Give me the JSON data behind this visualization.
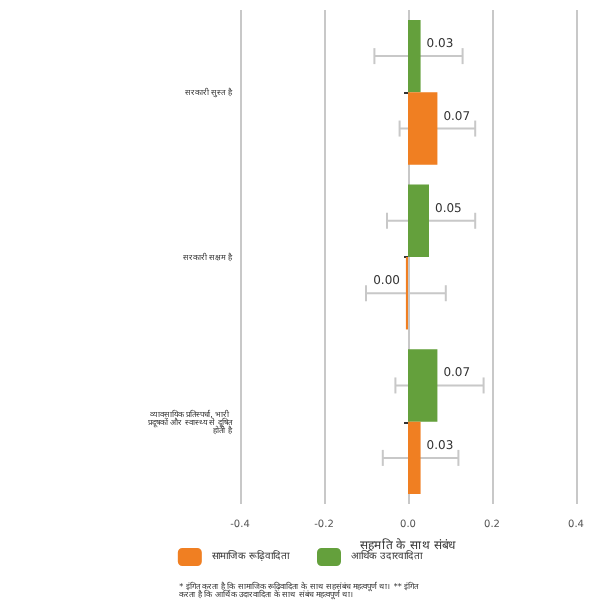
{
  "chart_data": {
    "type": "bar",
    "orientation": "horizontal",
    "xlabel": "सहमति के साथ संबंध",
    "categories": [
      "सरकारी सुस्त है",
      "सरकारी सक्षम है",
      "व्यावसायिक प्रतिस्पर्धा, भारी प्रदूषकों और स्वास्थ्य से दूषित होती है"
    ],
    "series": [
      {
        "name": "सामाजिक रूढ़िवादिता",
        "color": "#f07f22",
        "values": [
          0.07,
          -0.005,
          0.03
        ],
        "errors": [
          [
            -0.02,
            0.16
          ],
          [
            -0.1,
            0.09
          ],
          [
            -0.06,
            0.12
          ]
        ],
        "value_labels": [
          "0.07",
          "0.00",
          "0.03"
        ]
      },
      {
        "name": "आर्थिक उदारवादिता",
        "color": "#64a03c",
        "values": [
          0.03,
          0.05,
          0.07
        ],
        "errors": [
          [
            -0.08,
            0.13
          ],
          [
            -0.05,
            0.16
          ],
          [
            -0.03,
            0.18
          ]
        ],
        "value_labels": [
          "0.03",
          "0.05",
          "0.07"
        ]
      }
    ],
    "xlim": [
      -0.4,
      0.4
    ],
    "xticks": [
      -0.4,
      -0.2,
      {
        "value": 0,
        "label": "0.0"
      },
      0.2,
      0.4
    ],
    "grid": "x",
    "legend": "bottom",
    "annotations": [
      "* इंगित करता है कि सामाजिक रूढ़िवादिता के साथ सहसंबंध महत्वपूर्ण था। ** इंगित करता है कि आर्थिक उदारवादिता के साथ संबंध महत्वपूर्ण था।"
    ]
  }
}
